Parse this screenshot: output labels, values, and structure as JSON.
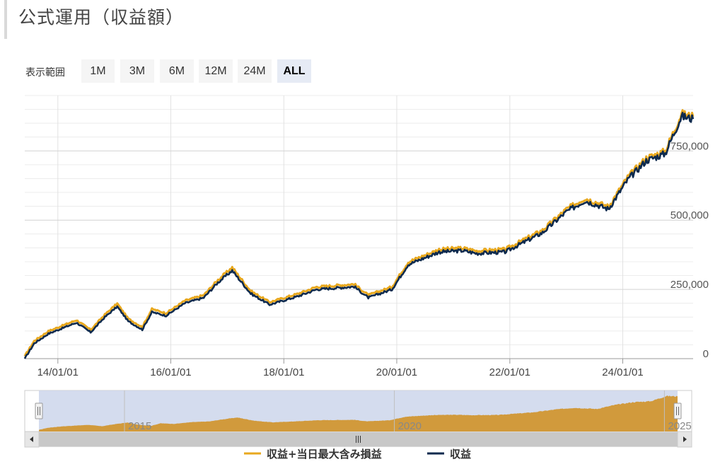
{
  "page_title": "公式運用（収益額）",
  "range_selector": {
    "label": "表示範囲",
    "buttons": [
      "1M",
      "3M",
      "6M",
      "12M",
      "24M",
      "ALL"
    ],
    "selected": "ALL"
  },
  "colors": {
    "series_gold": "#e8a81e",
    "series_navy": "#0d2a4e",
    "navigator_fill": "#d19a3c",
    "navigator_mask": "#ccd6eb"
  },
  "chart_data": {
    "type": "line",
    "x_range": [
      "2013-06-01",
      "2025-03-31"
    ],
    "ylim": [
      0,
      950000
    ],
    "y_ticks": [
      0,
      250000,
      500000,
      750000
    ],
    "y_tick_labels": [
      "0",
      "250,000",
      "500,000",
      "750,000"
    ],
    "x_tick_labels": [
      "14/01/01",
      "16/01/01",
      "18/01/01",
      "20/01/01",
      "22/01/01",
      "24/01/01"
    ],
    "grid": true,
    "legend_position": "bottom-center",
    "series": [
      {
        "name": "収益+当日最大含み損益",
        "color": "#e8a81e",
        "points": [
          [
            "2013-06-01",
            5000
          ],
          [
            "2013-08-01",
            60000
          ],
          [
            "2013-11-01",
            95000
          ],
          [
            "2014-05-01",
            135000
          ],
          [
            "2014-08-01",
            100000
          ],
          [
            "2014-11-01",
            155000
          ],
          [
            "2015-01-20",
            195000
          ],
          [
            "2015-04-01",
            140000
          ],
          [
            "2015-07-01",
            110000
          ],
          [
            "2015-09-01",
            175000
          ],
          [
            "2015-12-01",
            160000
          ],
          [
            "2016-04-01",
            205000
          ],
          [
            "2016-08-01",
            225000
          ],
          [
            "2016-11-01",
            280000
          ],
          [
            "2017-02-01",
            325000
          ],
          [
            "2017-06-01",
            240000
          ],
          [
            "2017-10-01",
            200000
          ],
          [
            "2018-04-01",
            230000
          ],
          [
            "2018-08-01",
            255000
          ],
          [
            "2019-04-01",
            265000
          ],
          [
            "2019-07-01",
            225000
          ],
          [
            "2019-12-01",
            255000
          ],
          [
            "2020-03-15",
            345000
          ],
          [
            "2020-10-01",
            390000
          ],
          [
            "2021-03-01",
            395000
          ],
          [
            "2021-06-01",
            385000
          ],
          [
            "2021-12-01",
            390000
          ],
          [
            "2022-08-01",
            460000
          ],
          [
            "2023-01-01",
            535000
          ],
          [
            "2023-05-01",
            575000
          ],
          [
            "2023-10-01",
            545000
          ],
          [
            "2024-02-01",
            650000
          ],
          [
            "2024-06-01",
            720000
          ],
          [
            "2024-10-01",
            745000
          ],
          [
            "2025-01-15",
            880000
          ],
          [
            "2025-03-31",
            870000
          ]
        ]
      },
      {
        "name": "収益",
        "color": "#0d2a4e",
        "points": [
          [
            "2013-06-01",
            0
          ],
          [
            "2013-08-01",
            55000
          ],
          [
            "2013-11-01",
            90000
          ],
          [
            "2014-05-01",
            130000
          ],
          [
            "2014-08-01",
            95000
          ],
          [
            "2014-11-01",
            150000
          ],
          [
            "2015-01-20",
            188000
          ],
          [
            "2015-04-01",
            135000
          ],
          [
            "2015-07-01",
            105000
          ],
          [
            "2015-09-01",
            168000
          ],
          [
            "2015-12-01",
            155000
          ],
          [
            "2016-04-01",
            200000
          ],
          [
            "2016-08-01",
            220000
          ],
          [
            "2016-11-01",
            275000
          ],
          [
            "2017-02-01",
            318000
          ],
          [
            "2017-06-01",
            235000
          ],
          [
            "2017-10-01",
            195000
          ],
          [
            "2018-04-01",
            225000
          ],
          [
            "2018-08-01",
            250000
          ],
          [
            "2019-04-01",
            260000
          ],
          [
            "2019-07-01",
            220000
          ],
          [
            "2019-12-01",
            250000
          ],
          [
            "2020-03-15",
            340000
          ],
          [
            "2020-10-01",
            385000
          ],
          [
            "2021-03-01",
            390000
          ],
          [
            "2021-06-01",
            380000
          ],
          [
            "2021-12-01",
            385000
          ],
          [
            "2022-08-01",
            455000
          ],
          [
            "2023-01-01",
            530000
          ],
          [
            "2023-05-01",
            570000
          ],
          [
            "2023-10-01",
            540000
          ],
          [
            "2024-02-01",
            645000
          ],
          [
            "2024-06-01",
            715000
          ],
          [
            "2024-10-01",
            740000
          ],
          [
            "2025-01-15",
            875000
          ],
          [
            "2025-03-31",
            865000
          ]
        ]
      }
    ],
    "navigator": {
      "tick_labels": [
        "2015",
        "2020",
        "2025"
      ],
      "selected_range": [
        "2013-06-01",
        "2025-03-31"
      ]
    }
  }
}
